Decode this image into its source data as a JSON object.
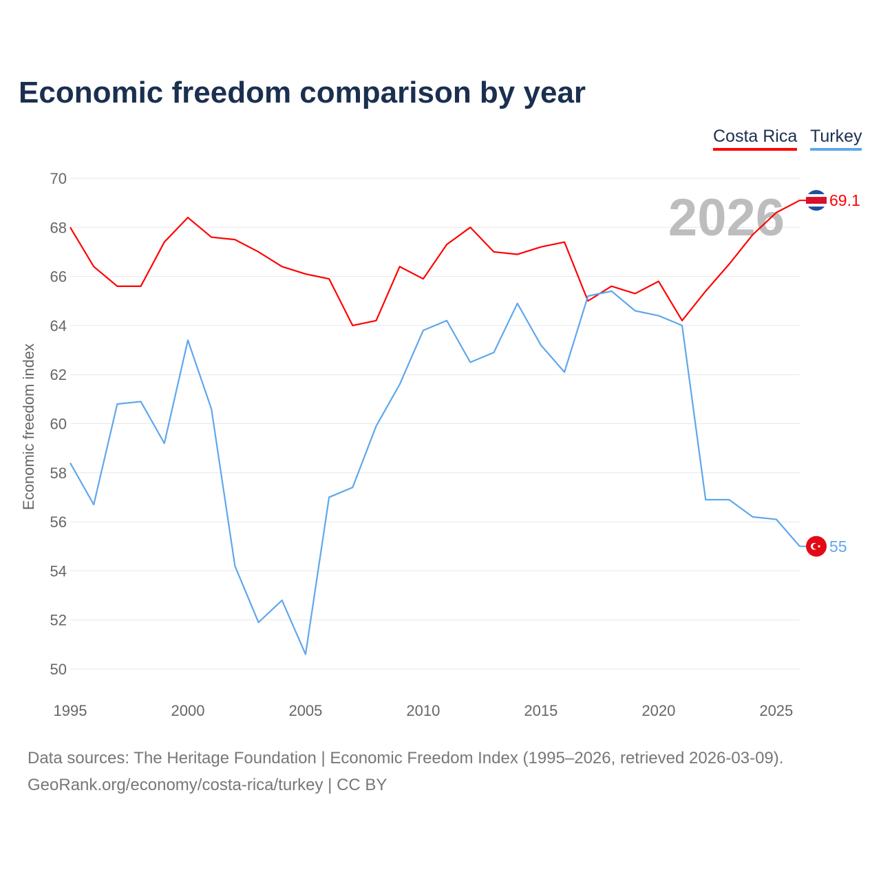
{
  "chart_data": {
    "type": "line",
    "title": "Economic freedom comparison by year",
    "xlabel": "",
    "ylabel": "Economic freedom index",
    "xlim": [
      1995,
      2026
    ],
    "ylim": [
      50,
      70
    ],
    "yticks": [
      50,
      52,
      54,
      56,
      58,
      60,
      62,
      64,
      66,
      68,
      70
    ],
    "xticks": [
      1995,
      2000,
      2005,
      2010,
      2015,
      2020,
      2025
    ],
    "grid": true,
    "legend_position": "top-right",
    "watermark_year": "2026",
    "x": [
      1995,
      1996,
      1997,
      1998,
      1999,
      2000,
      2001,
      2002,
      2003,
      2004,
      2005,
      2006,
      2007,
      2008,
      2009,
      2010,
      2011,
      2012,
      2013,
      2014,
      2015,
      2016,
      2017,
      2018,
      2019,
      2020,
      2021,
      2022,
      2023,
      2024,
      2025,
      2026
    ],
    "series": [
      {
        "name": "Costa Rica",
        "color": "#ff0000",
        "end_label": "69.1",
        "values": [
          68.0,
          66.4,
          65.6,
          65.6,
          67.4,
          68.4,
          67.6,
          67.5,
          67.0,
          66.4,
          66.1,
          65.9,
          64.0,
          64.2,
          66.4,
          65.9,
          67.3,
          68.0,
          67.0,
          66.9,
          67.2,
          67.4,
          65.0,
          65.6,
          65.3,
          65.8,
          64.2,
          65.4,
          66.5,
          67.7,
          68.6,
          69.1
        ]
      },
      {
        "name": "Turkey",
        "color": "#5ea7ec",
        "end_label": "55",
        "values": [
          58.4,
          56.7,
          60.8,
          60.9,
          59.2,
          63.4,
          60.6,
          54.2,
          51.9,
          52.8,
          50.6,
          57.0,
          57.4,
          59.9,
          61.6,
          63.8,
          64.2,
          62.5,
          62.9,
          64.9,
          63.2,
          62.1,
          65.2,
          65.4,
          64.6,
          64.4,
          64.0,
          56.9,
          56.9,
          56.2,
          56.1,
          55.0
        ]
      }
    ]
  },
  "footer": {
    "line1": "Data sources: The Heritage Foundation | Economic Freedom Index (1995–2026, retrieved 2026-03-09).",
    "line2": "GeoRank.org/economy/costa-rica/turkey | CC BY"
  }
}
